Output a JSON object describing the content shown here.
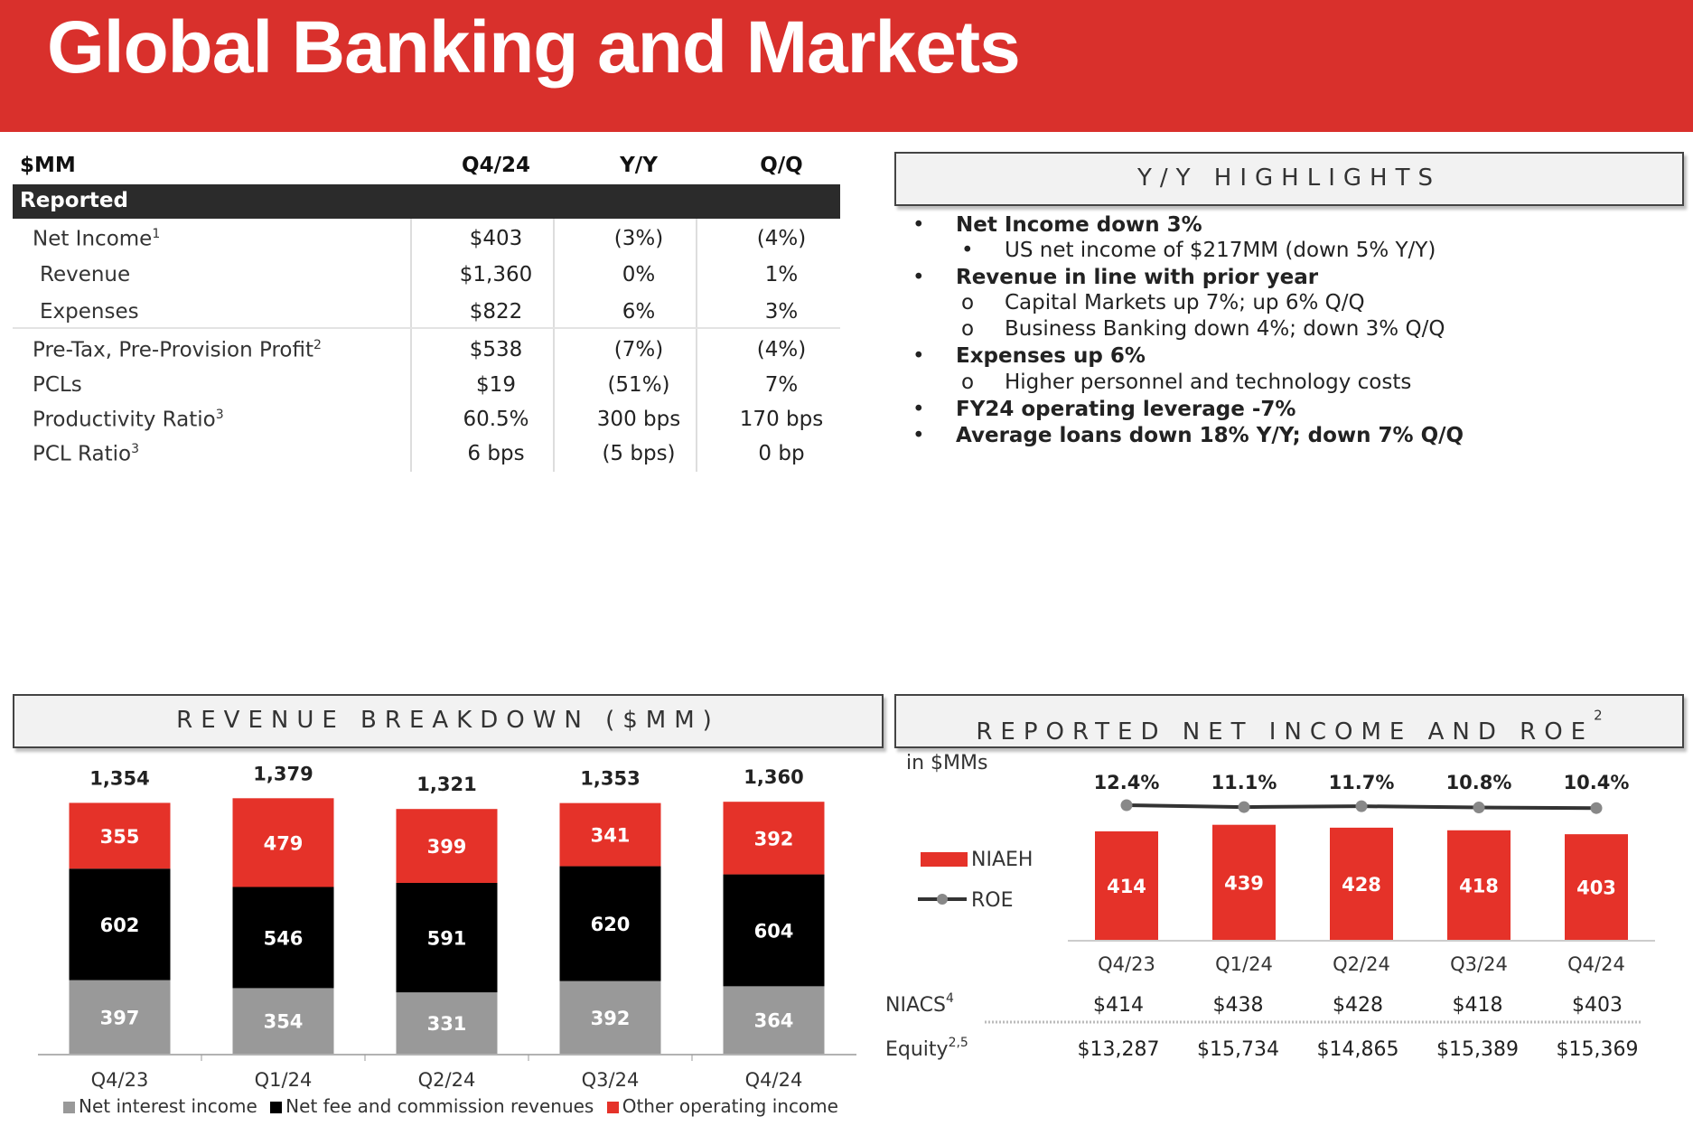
{
  "header": {
    "title": "Global Banking and Markets"
  },
  "metrics_table": {
    "columns": [
      "$MM",
      "Q4/24",
      "Y/Y",
      "Q/Q"
    ],
    "band_label": "Reported",
    "rows": [
      {
        "label": "Net Income",
        "sup": "1",
        "q424": "$403",
        "yy": "(3%)",
        "qq": "(4%)"
      },
      {
        "label": "Revenue",
        "sup": "",
        "q424": "$1,360",
        "yy": "0%",
        "qq": "1%"
      },
      {
        "label": "Expenses",
        "sup": "",
        "q424": "$822",
        "yy": "6%",
        "qq": "3%"
      },
      {
        "label": "Pre-Tax, Pre-Provision Profit",
        "sup": "2",
        "q424": "$538",
        "yy": "(7%)",
        "qq": "(4%)"
      },
      {
        "label": "PCLs",
        "sup": "",
        "q424": "$19",
        "yy": "(51%)",
        "qq": "7%"
      },
      {
        "label": "Productivity Ratio",
        "sup": "3",
        "q424": "60.5%",
        "yy": "300 bps",
        "qq": "170 bps"
      },
      {
        "label": "PCL Ratio",
        "sup": "3",
        "q424": "6 bps",
        "yy": "(5 bps)",
        "qq": "0 bp"
      }
    ]
  },
  "highlights": {
    "title": "Y/Y HIGHLIGHTS",
    "items": [
      {
        "bullet": "•",
        "text": "Net Income down 3%",
        "bold": true,
        "sub": false
      },
      {
        "bullet": "•",
        "text": "US net income of $217MM (down 5% Y/Y)",
        "bold": false,
        "sub": true
      },
      {
        "bullet": "•",
        "text": "Revenue in line with prior year",
        "bold": true,
        "sub": false
      },
      {
        "bullet": "o",
        "text": "Capital Markets up 7%; up 6% Q/Q",
        "bold": false,
        "sub": true
      },
      {
        "bullet": "o",
        "text": "Business Banking down 4%; down 3% Q/Q",
        "bold": false,
        "sub": true
      },
      {
        "bullet": "•",
        "text": "Expenses up 6%",
        "bold": true,
        "sub": false
      },
      {
        "bullet": "o",
        "text": "Higher personnel and technology costs",
        "bold": false,
        "sub": true
      },
      {
        "bullet": "•",
        "text": "FY24 operating leverage -7%",
        "bold": true,
        "sub": false
      },
      {
        "bullet": "•",
        "text": "Average loans down 18% Y/Y; down 7% Q/Q",
        "bold": true,
        "sub": false
      }
    ]
  },
  "revenue_section": {
    "title": "REVENUE BREAKDOWN ($MM)"
  },
  "ni_section": {
    "title": "REPORTED NET INCOME AND ROE",
    "sup": "2"
  },
  "colors": {
    "brand_red": "#d9302c",
    "black": "#000000",
    "grey": "#999999"
  },
  "chart_data": [
    {
      "type": "bar",
      "stacked": true,
      "categories": [
        "Q4/23",
        "Q1/24",
        "Q2/24",
        "Q3/24",
        "Q4/24"
      ],
      "series": [
        {
          "name": "Net interest income",
          "color": "#999999",
          "values": [
            397,
            354,
            331,
            392,
            364
          ]
        },
        {
          "name": "Net fee and commission revenues",
          "color": "#000000",
          "values": [
            602,
            546,
            591,
            620,
            604
          ]
        },
        {
          "name": "Other operating income",
          "color": "#e53229",
          "values": [
            355,
            479,
            399,
            341,
            392
          ]
        }
      ],
      "totals": [
        1354,
        1379,
        1321,
        1353,
        1360
      ],
      "legend_position": "bottom"
    },
    {
      "type": "bar",
      "units_label": "in $MMs",
      "categories": [
        "Q4/23",
        "Q1/24",
        "Q2/24",
        "Q3/24",
        "Q4/24"
      ],
      "series": [
        {
          "name": "NIAEH",
          "kind": "bar",
          "color": "#e53229",
          "values": [
            414,
            439,
            428,
            418,
            403
          ]
        },
        {
          "name": "ROE",
          "kind": "line",
          "color": "#333333",
          "values": [
            12.4,
            11.1,
            11.7,
            10.8,
            10.4
          ],
          "labels": [
            "12.4%",
            "11.1%",
            "11.7%",
            "10.8%",
            "10.4%"
          ]
        }
      ],
      "legend_position": "left",
      "table_rows": [
        {
          "label": "NIACS",
          "sup": "4",
          "values": [
            "$414",
            "$438",
            "$428",
            "$418",
            "$403"
          ]
        },
        {
          "label": "Equity",
          "sup": "2,5",
          "values": [
            "$13,287",
            "$15,734",
            "$14,865",
            "$15,389",
            "$15,369"
          ]
        }
      ]
    }
  ]
}
